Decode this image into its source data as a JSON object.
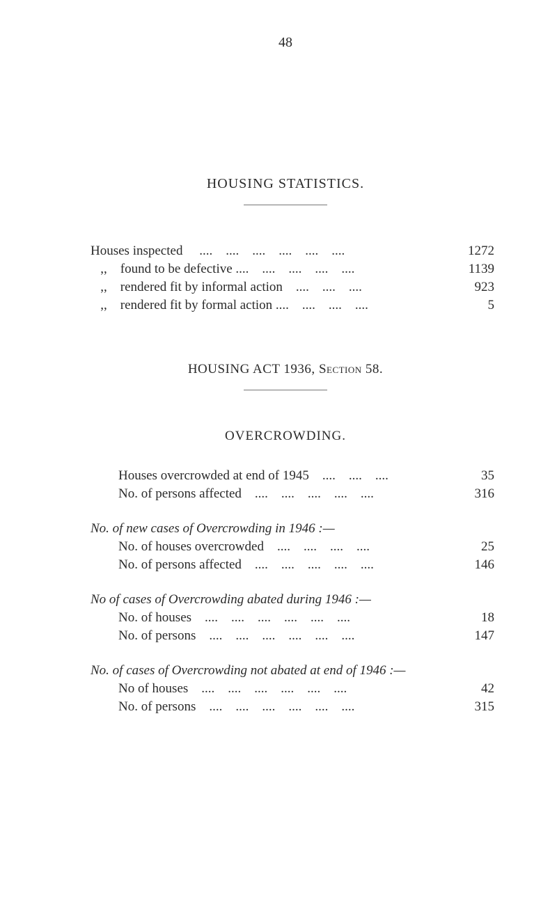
{
  "page_number": "48",
  "main_title": "HOUSING STATISTICS.",
  "stats_block_1": {
    "rows": [
      {
        "label": "Houses inspected     ....    ....    ....    ....    ....    ....",
        "value": "1272"
      },
      {
        "label": "   ,,    found to be defective ....    ....    ....    ....    ....",
        "value": "1139"
      },
      {
        "label": "   ,,    rendered fit by informal action    ....    ....    ....",
        "value": "923"
      },
      {
        "label": "   ,,    rendered fit by formal action ....    ....    ....    ....",
        "value": "5"
      }
    ]
  },
  "section_2_title_prefix": "HOUSING ACT 1936, ",
  "section_2_title_sc": "Section",
  "section_2_title_suffix": " 58.",
  "sub_title": "OVERCROWDING.",
  "block_a": {
    "rows": [
      {
        "label": "Houses overcrowded at end of 1945    ....    ....    ....",
        "value": "35"
      },
      {
        "label": "No. of persons affected    ....    ....    ....    ....    ....",
        "value": "316"
      }
    ]
  },
  "block_b": {
    "heading": "No. of new cases of Overcrowding in 1946 :—",
    "rows": [
      {
        "label": "No. of houses overcrowded    ....    ....    ....    ....",
        "value": "25"
      },
      {
        "label": "No. of persons affected    ....    ....    ....    ....    ....",
        "value": "146"
      }
    ]
  },
  "block_c": {
    "heading": "No of cases of Overcrowding abated during 1946 :—",
    "rows": [
      {
        "label": "No. of houses    ....    ....    ....    ....    ....    ....",
        "value": "18"
      },
      {
        "label": "No. of persons    ....    ....    ....    ....    ....    ....",
        "value": "147"
      }
    ]
  },
  "block_d": {
    "heading": "No. of cases of Overcrowding not abated at end of 1946 :—",
    "rows": [
      {
        "label": "No of houses    ....    ....    ....    ....    ....    ....",
        "value": "42"
      },
      {
        "label": "No. of persons    ....    ....    ....    ....    ....    ....",
        "value": "315"
      }
    ]
  }
}
